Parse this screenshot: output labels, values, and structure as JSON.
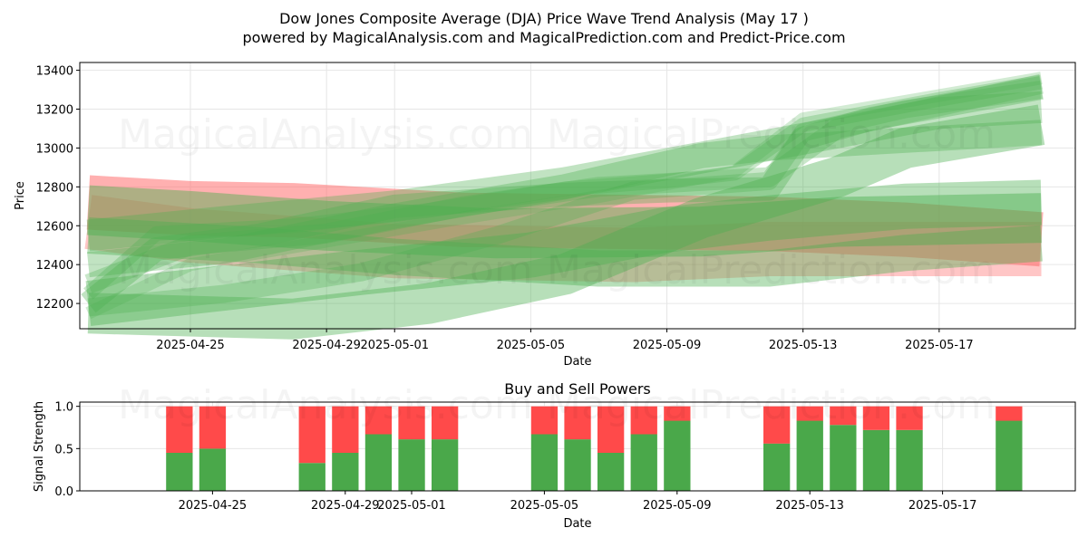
{
  "title_line1": "Dow Jones Composite Average (DJA) Price Wave Trend Analysis (May 17 )",
  "title_line2": "powered by MagicalAnalysis.com and MagicalPrediction.com and Predict-Price.com",
  "watermarks": [
    "MagicalAnalysis.com",
    "MagicalPrediction.com"
  ],
  "colors": {
    "buy": "#4aa84a",
    "sell": "#ff4a4a",
    "band_green": "#4caf50",
    "band_red": "#ff7070"
  },
  "chart_data": [
    {
      "type": "area",
      "title": "",
      "xlabel": "Date",
      "ylabel": "Price",
      "xlim": [
        "2025-04-21T18:00",
        "2025-05-21T00:00"
      ],
      "ylim": [
        12070,
        13440
      ],
      "x_ticks": [
        "2025-04-25",
        "2025-04-29",
        "2025-05-01",
        "2025-05-05",
        "2025-05-09",
        "2025-05-13",
        "2025-05-17"
      ],
      "y_ticks": [
        12200,
        12400,
        12600,
        12800,
        13000,
        13200,
        13400
      ],
      "grid": true,
      "series": [
        {
          "color": "red",
          "opacity": 0.55,
          "width": 60,
          "points": [
            [
              "2025-04-22",
              12720
            ],
            [
              "2025-04-25",
              12690
            ],
            [
              "2025-04-28",
              12680
            ],
            [
              "2025-05-03",
              12630
            ],
            [
              "2025-05-12",
              12610
            ],
            [
              "2025-05-16",
              12580
            ],
            [
              "2025-05-20",
              12530
            ]
          ]
        },
        {
          "color": "red",
          "opacity": 0.4,
          "width": 60,
          "points": [
            [
              "2025-04-22",
              12620
            ],
            [
              "2025-04-25",
              12550
            ],
            [
              "2025-05-01",
              12470
            ],
            [
              "2025-05-08",
              12450
            ],
            [
              "2025-05-12",
              12480
            ],
            [
              "2025-05-20",
              12480
            ]
          ]
        },
        {
          "color": "green",
          "opacity": 0.45,
          "width": 55,
          "points": [
            [
              "2025-04-22",
              12680
            ],
            [
              "2025-04-25",
              12650
            ],
            [
              "2025-04-29",
              12600
            ],
            [
              "2025-05-04",
              12560
            ],
            [
              "2025-05-10",
              12570
            ],
            [
              "2025-05-14",
              12620
            ],
            [
              "2025-05-20",
              12640
            ]
          ]
        },
        {
          "color": "green",
          "opacity": 0.4,
          "width": 50,
          "points": [
            [
              "2025-04-22",
              12200
            ],
            [
              "2025-04-25",
              12260
            ],
            [
              "2025-04-30",
              12360
            ],
            [
              "2025-05-05",
              12450
            ],
            [
              "2025-05-09",
              12580
            ],
            [
              "2025-05-12",
              12640
            ],
            [
              "2025-05-16",
              12700
            ],
            [
              "2025-05-20",
              12720
            ]
          ]
        },
        {
          "color": "green",
          "opacity": 0.4,
          "width": 45,
          "points": [
            [
              "2025-04-22",
              12150
            ],
            [
              "2025-04-28",
              12120
            ],
            [
              "2025-05-02",
              12200
            ],
            [
              "2025-05-06",
              12350
            ],
            [
              "2025-05-10",
              12640
            ],
            [
              "2025-05-14",
              12850
            ],
            [
              "2025-05-16",
              13000
            ],
            [
              "2025-05-20",
              13120
            ]
          ]
        },
        {
          "color": "green",
          "opacity": 0.4,
          "width": 40,
          "points": [
            [
              "2025-04-22",
              12550
            ],
            [
              "2025-04-27",
              12500
            ],
            [
              "2025-05-01",
              12440
            ],
            [
              "2025-05-07",
              12380
            ],
            [
              "2025-05-12",
              12380
            ],
            [
              "2025-05-16",
              12460
            ],
            [
              "2025-05-20",
              12510
            ]
          ]
        },
        {
          "color": "green",
          "opacity": 0.35,
          "width": 35,
          "points": [
            [
              "2025-04-22",
              12550
            ],
            [
              "2025-04-26",
              12620
            ],
            [
              "2025-05-01",
              12700
            ],
            [
              "2025-05-06",
              12820
            ],
            [
              "2025-05-10",
              12950
            ],
            [
              "2025-05-14",
              13080
            ],
            [
              "2025-05-17",
              13180
            ],
            [
              "2025-05-20",
              13210
            ]
          ]
        },
        {
          "color": "green",
          "opacity": 0.35,
          "width": 28,
          "points": [
            [
              "2025-04-22",
              12400
            ],
            [
              "2025-04-26",
              12470
            ],
            [
              "2025-05-01",
              12650
            ],
            [
              "2025-05-06",
              12800
            ],
            [
              "2025-05-10",
              12960
            ],
            [
              "2025-05-12",
              13000
            ],
            [
              "2025-05-20",
              13080
            ]
          ]
        },
        {
          "color": "green",
          "opacity": 0.35,
          "width": 26,
          "points": [
            [
              "2025-04-22",
              12200
            ],
            [
              "2025-04-24",
              12480
            ],
            [
              "2025-04-27",
              12550
            ],
            [
              "2025-05-01",
              12700
            ],
            [
              "2025-05-06",
              12760
            ],
            [
              "2025-05-09",
              12780
            ],
            [
              "2025-05-12",
              12790
            ],
            [
              "2025-05-13",
              13050
            ],
            [
              "2025-05-15",
              13150
            ],
            [
              "2025-05-20",
              13310
            ]
          ]
        },
        {
          "color": "green",
          "opacity": 0.3,
          "width": 22,
          "points": [
            [
              "2025-04-22",
              12300
            ],
            [
              "2025-04-25",
              12500
            ],
            [
              "2025-04-29",
              12560
            ],
            [
              "2025-05-03",
              12700
            ],
            [
              "2025-05-07",
              12800
            ],
            [
              "2025-05-12",
              12850
            ],
            [
              "2025-05-14",
              13100
            ],
            [
              "2025-05-20",
              13330
            ]
          ]
        },
        {
          "color": "green",
          "opacity": 0.3,
          "width": 20,
          "points": [
            [
              "2025-04-22",
              12180
            ],
            [
              "2025-04-26",
              12250
            ],
            [
              "2025-04-30",
              12360
            ],
            [
              "2025-05-04",
              12550
            ],
            [
              "2025-05-08",
              12780
            ],
            [
              "2025-05-12",
              12830
            ],
            [
              "2025-05-13",
              13080
            ],
            [
              "2025-05-16",
              13200
            ],
            [
              "2025-05-20",
              13300
            ]
          ]
        },
        {
          "color": "green",
          "opacity": 0.3,
          "width": 16,
          "points": [
            [
              "2025-04-22",
              12250
            ],
            [
              "2025-04-24",
              12560
            ],
            [
              "2025-04-28",
              12600
            ],
            [
              "2025-05-02",
              12680
            ],
            [
              "2025-05-06",
              12790
            ],
            [
              "2025-05-09",
              12830
            ],
            [
              "2025-05-11",
              12870
            ],
            [
              "2025-05-13",
              13120
            ],
            [
              "2025-05-17",
              13250
            ],
            [
              "2025-05-20",
              13340
            ]
          ]
        },
        {
          "color": "green",
          "opacity": 0.25,
          "width": 14,
          "points": [
            [
              "2025-04-22",
              12150
            ],
            [
              "2025-04-25",
              12400
            ],
            [
              "2025-04-29",
              12520
            ],
            [
              "2025-05-03",
              12640
            ],
            [
              "2025-05-07",
              12750
            ],
            [
              "2025-05-11",
              12880
            ],
            [
              "2025-05-13",
              13150
            ],
            [
              "2025-05-20",
              13360
            ]
          ]
        }
      ]
    },
    {
      "type": "bar",
      "title": "Buy and Sell Powers",
      "xlabel": "Date",
      "ylabel": "Signal Strength",
      "ylim": [
        0,
        1.05
      ],
      "y_ticks": [
        "0.0",
        "0.5",
        "1.0"
      ],
      "x_ticks": [
        "2025-04-25",
        "2025-04-29",
        "2025-05-01",
        "2025-05-05",
        "2025-05-09",
        "2025-05-13",
        "2025-05-17"
      ],
      "categories": [
        "2025-04-24",
        "2025-04-25",
        "2025-04-28",
        "2025-04-29",
        "2025-04-30",
        "2025-05-01",
        "2025-05-02",
        "2025-05-05",
        "2025-05-06",
        "2025-05-07",
        "2025-05-08",
        "2025-05-09",
        "2025-05-12",
        "2025-05-13",
        "2025-05-14",
        "2025-05-15",
        "2025-05-16",
        "2025-05-19"
      ],
      "series": [
        {
          "name": "Buy",
          "values": [
            0.45,
            0.5,
            0.33,
            0.45,
            0.67,
            0.61,
            0.61,
            0.67,
            0.61,
            0.45,
            0.67,
            0.83,
            0.56,
            0.83,
            0.78,
            0.72,
            0.72,
            0.83
          ]
        },
        {
          "name": "Sell",
          "values": [
            0.55,
            0.5,
            0.67,
            0.55,
            0.33,
            0.39,
            0.39,
            0.33,
            0.39,
            0.55,
            0.33,
            0.17,
            0.44,
            0.17,
            0.22,
            0.28,
            0.28,
            0.17
          ]
        }
      ]
    }
  ]
}
